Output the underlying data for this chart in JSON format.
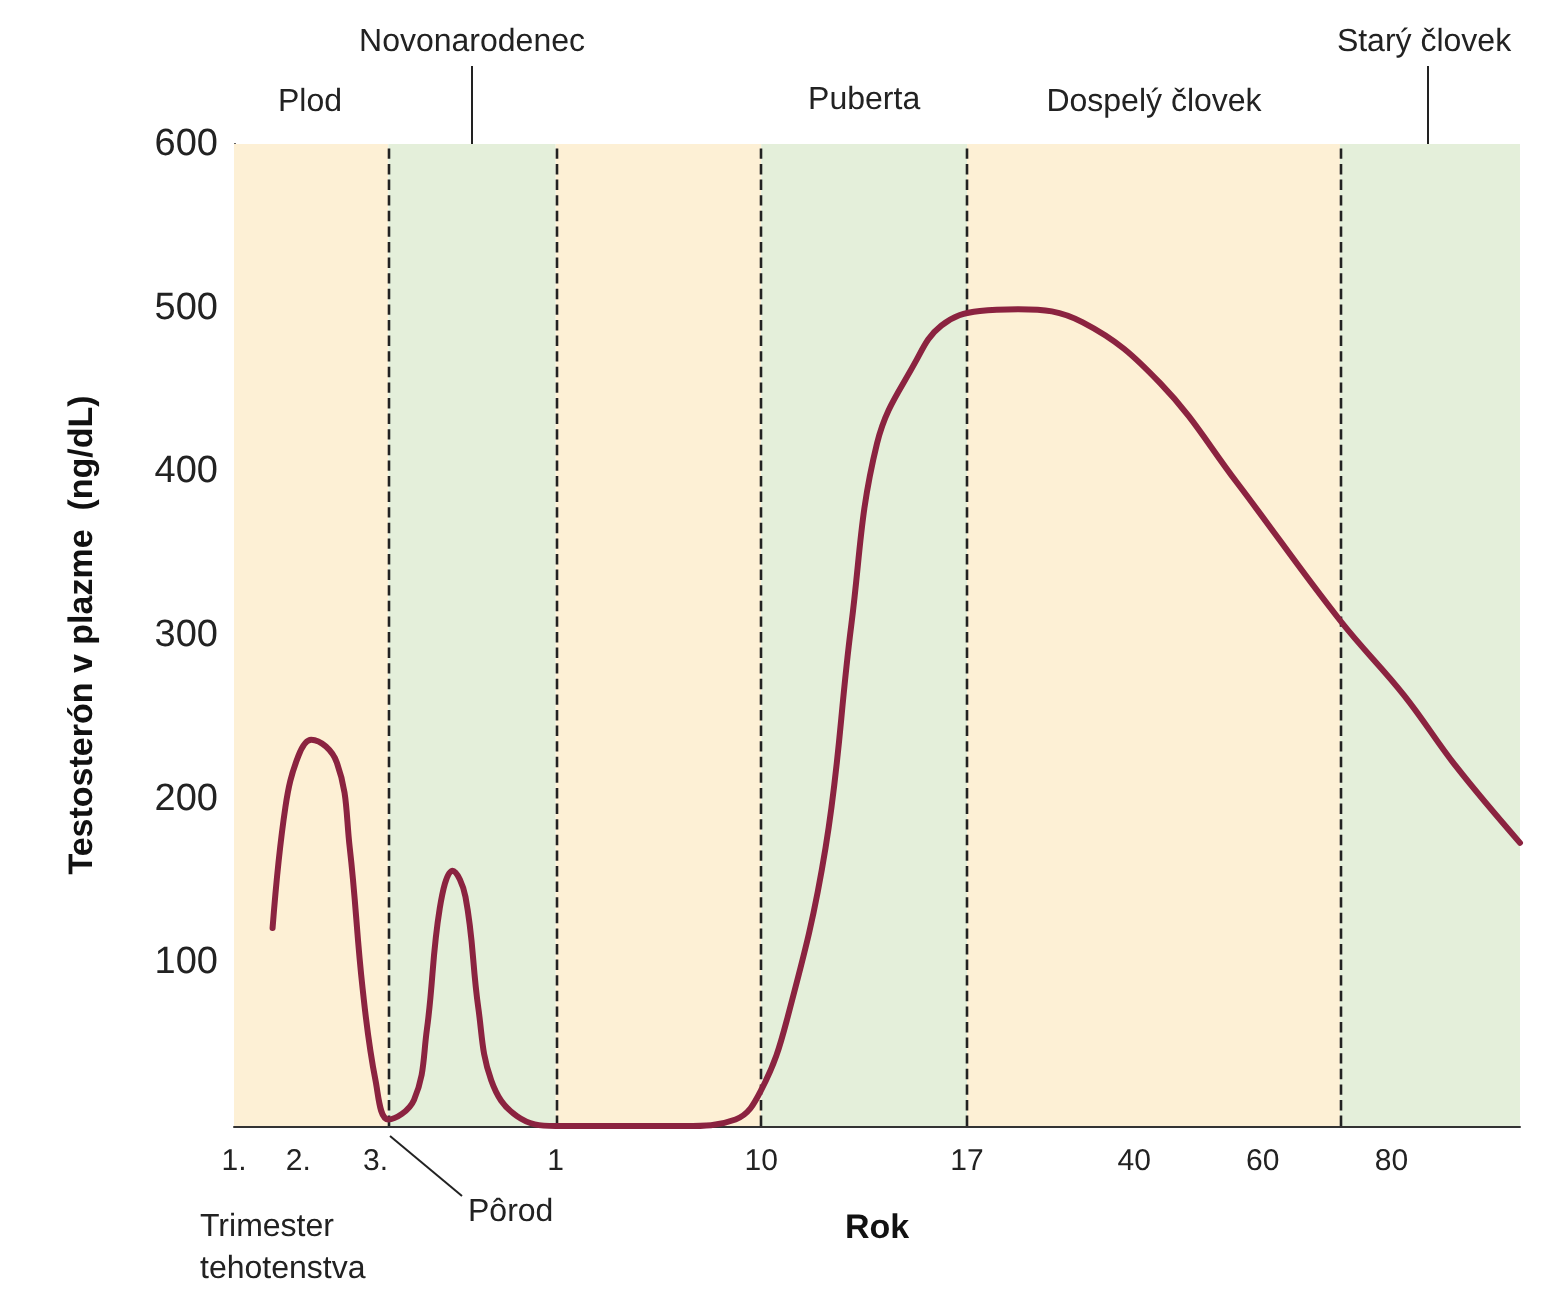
{
  "chart_data": {
    "type": "line",
    "xlabel": "Rok",
    "ylabel": "Testosterón v plazme  (ng/dL)",
    "categories": [
      "1.",
      null,
      null,
      null,
      null,
      "2.",
      null,
      null,
      null,
      null,
      null,
      "3.",
      null,
      null,
      null,
      null,
      null,
      null,
      null,
      null,
      null,
      null,
      null,
      null,
      null,
      "1",
      null,
      null,
      null,
      null,
      null,
      null,
      null,
      null,
      null,
      null,
      null,
      null,
      null,
      null,
      null,
      "10",
      null,
      null,
      null,
      null,
      null,
      null,
      null,
      null,
      null,
      null,
      null,
      null,
      null,
      null,
      null,
      "17",
      null,
      null,
      null,
      null,
      null,
      null,
      null,
      null,
      null,
      null,
      null,
      null,
      "40",
      null,
      null,
      null,
      null,
      null,
      null,
      null,
      null,
      null,
      "60",
      null,
      null,
      null,
      null,
      null,
      null,
      null,
      null,
      null,
      "80",
      null,
      null,
      null,
      null,
      null,
      null,
      null,
      null,
      null,
      null
    ],
    "ylim": [
      0,
      600
    ],
    "yticks": [
      100,
      200,
      300,
      400,
      500,
      600
    ],
    "series": [
      {
        "color": "#8b2340",
        "values": [
          null,
          null,
          null,
          121,
          195,
          226,
          236,
          null,
          222,
          170,
          84,
          28,
          4,
          null,
          16,
          59,
          133,
          156,
          140,
          72,
          28,
          null,
          6,
          null,
          null,
          0,
          null,
          null,
          null,
          null,
          null,
          null,
          null,
          null,
          null,
          0,
          null,
          null,
          null,
          4,
          null,
          22,
          null,
          65,
          null,
          null,
          170,
          null,
          306,
          null,
          417,
          null,
          null,
          467,
          null,
          489,
          null,
          null,
          498,
          null,
          null,
          499,
          null,
          null,
          null,
          null,
          491,
          null,
          null,
          null,
          null,
          null,
          454,
          null,
          null,
          null,
          null,
          null,
          393,
          null,
          null,
          null,
          null,
          null,
          null,
          null,
          309,
          null,
          null,
          null,
          null,
          263,
          null,
          null,
          null,
          220,
          null,
          null,
          null,
          null,
          173
        ]
      }
    ],
    "bands": [
      {
        "axis": "x",
        "from": "1",
        "to": "10",
        "label": null,
        "color": "#fdf0d5"
      },
      {
        "axis": "x",
        "from": "10",
        "to": "17",
        "label": "Puberta",
        "color": "#e4efda"
      }
    ],
    "annotations": [
      "Plod",
      "Novonarodenec",
      "Dospelý človek",
      "Starý človek",
      "Trimester tehotenstva",
      "Pôrod"
    ],
    "grid": false,
    "marker": "none",
    "line_style": "solid"
  }
}
